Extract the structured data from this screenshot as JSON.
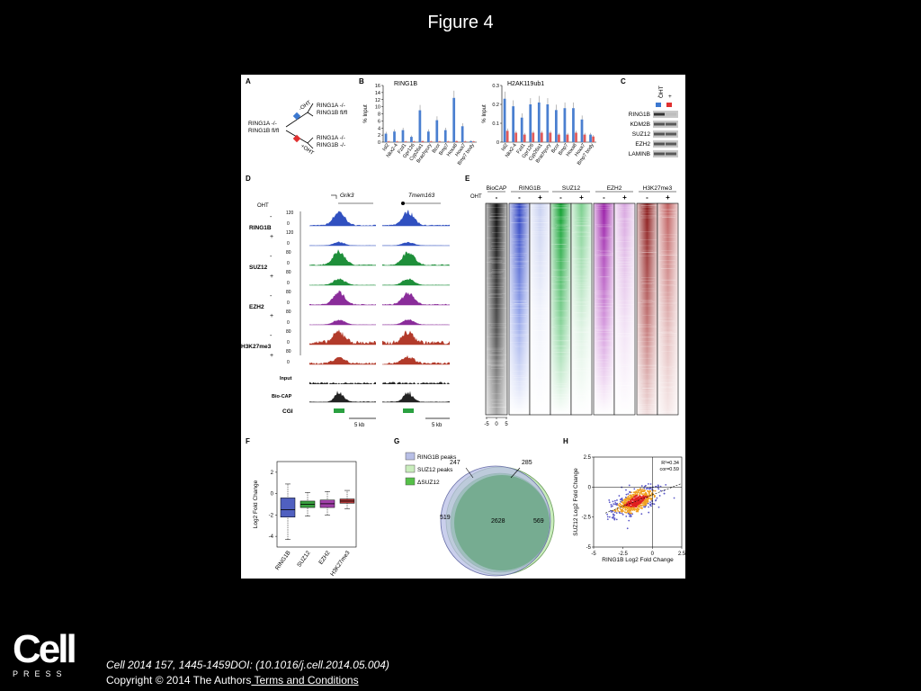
{
  "slide": {
    "title": "Figure 4"
  },
  "panels": {
    "A": {
      "letter": "A",
      "parent": "RING1A -/-\nRING1B fl/fl",
      "top": "RING1A -/-\nRING1B fl/fl",
      "bottom": "RING1A -/-\nRING1B -/-",
      "minus_label": "-OHT",
      "plus_label": "+OHT"
    },
    "B": {
      "letter": "B"
    },
    "C": {
      "letter": "C",
      "header": "OHT",
      "minus": "-",
      "plus": "+",
      "rows": [
        "RING1B",
        "KDM2B",
        "SUZ12",
        "EZH2",
        "LAMINB"
      ]
    },
    "D": {
      "letter": "D",
      "genes": [
        "Grik3",
        "Tmem163"
      ],
      "oht_label": "OHT",
      "groups": [
        "RING1B",
        "SUZ12",
        "EZH2",
        "H3K27me3"
      ],
      "scales": [
        "120",
        "120",
        "80",
        "80",
        "80",
        "80",
        "80",
        "80"
      ],
      "extra_tracks": [
        "Input",
        "Bio-CAP",
        "CGI"
      ],
      "scalebar": "5 kb"
    },
    "E": {
      "letter": "E",
      "oht_label": "OHT",
      "columns": [
        "BioCAP",
        "RING1B",
        "SUZ12",
        "EZH2",
        "H3K27me3"
      ],
      "axis_ticks": [
        "-5",
        "0",
        "5"
      ]
    },
    "F": {
      "letter": "F"
    },
    "G": {
      "letter": "G",
      "legend": [
        "RING1B peaks",
        "SUZ12 peaks",
        "ΔSUZ12"
      ],
      "counts": {
        "top_left": "247",
        "top_right": "285",
        "left": "519",
        "center": "2628",
        "right": "569"
      }
    },
    "H": {
      "letter": "H",
      "stats": [
        "R²=0.34",
        "cor=0.59"
      ]
    }
  },
  "chart_data": [
    {
      "type": "bar",
      "title": "RING1B",
      "ylabel": "% Input",
      "ylim": [
        0,
        16
      ],
      "yticks": [
        "0",
        "2",
        "4",
        "6",
        "8",
        "10",
        "12",
        "14",
        "16"
      ],
      "categories": [
        "Isl2",
        "Nkx2-4",
        "Fzd1",
        "Gpr126",
        "Cyp26a1",
        "Brachyury",
        "Bcor",
        "Bmp7",
        "Hoxa8",
        "Hoxa7",
        "Bmp7 body"
      ],
      "series": [
        {
          "values": [
            2.4,
            3.0,
            3.4,
            1.5,
            9.0,
            3.0,
            6.2,
            3.4,
            12.5,
            4.5,
            0.3
          ],
          "color": "#4a7fd0"
        },
        {
          "values": [
            0.2,
            0.2,
            0.2,
            0.2,
            0.3,
            0.2,
            0.2,
            0.2,
            0.3,
            0.2,
            0.2
          ],
          "color": "#e05a5a"
        }
      ]
    },
    {
      "type": "bar",
      "title": "H2AK119ub1",
      "ylabel": "% Input",
      "ylim": [
        0,
        0.3
      ],
      "yticks": [
        "0",
        "0.1",
        "0.2",
        "0.3"
      ],
      "categories": [
        "Isl2",
        "Nkx2-4",
        "Fzd1",
        "Gpr126",
        "Cyp26a1",
        "Brachyury",
        "Bcor",
        "Bmp7",
        "Hoxa8",
        "Hoxa7",
        "Bmp7 body"
      ],
      "series": [
        {
          "values": [
            0.23,
            0.19,
            0.13,
            0.2,
            0.21,
            0.2,
            0.17,
            0.18,
            0.18,
            0.12,
            0.04
          ],
          "color": "#4a7fd0"
        },
        {
          "values": [
            0.06,
            0.05,
            0.04,
            0.05,
            0.05,
            0.05,
            0.04,
            0.04,
            0.05,
            0.04,
            0.03
          ],
          "color": "#e05a5a"
        }
      ]
    },
    {
      "type": "box",
      "ylabel": "Log2 Fold Change",
      "ylim": [
        -5,
        3
      ],
      "yticks": [
        "2",
        "0",
        "-2",
        "-4"
      ],
      "categories": [
        "RING1B",
        "SUZ12",
        "EZH2",
        "H3K27me3"
      ],
      "boxes": [
        {
          "min": -4.3,
          "q1": -2.2,
          "median": -1.5,
          "q3": -0.4,
          "max": 0.9,
          "color": "#5060c0"
        },
        {
          "min": -2.1,
          "q1": -1.3,
          "median": -1.0,
          "q3": -0.7,
          "max": 0.1,
          "color": "#3aa040"
        },
        {
          "min": -2.0,
          "q1": -1.3,
          "median": -0.95,
          "q3": -0.6,
          "max": 0.2,
          "color": "#a040a8"
        },
        {
          "min": -1.4,
          "q1": -0.9,
          "median": -0.7,
          "q3": -0.5,
          "max": 0.3,
          "color": "#b03838"
        }
      ]
    },
    {
      "type": "scatter",
      "xlabel": "RING1B Log2 Fold Change",
      "ylabel": "SUZ12 Log2 Fold Change",
      "xlim": [
        -5,
        2.5
      ],
      "ylim": [
        -5,
        2.5
      ],
      "xticks": [
        "-5",
        "-2.5",
        "0",
        "2.5"
      ],
      "yticks": [
        "2.5",
        "0",
        "-2.5",
        "-5"
      ],
      "fit": {
        "slope": 0.38,
        "intercept": -0.65
      }
    }
  ],
  "footer": {
    "citation": "Cell 2014 157, 1445-1459DOI: (10.1016/j.cell.2014.05.004)",
    "copyright": "Copyright © 2014 The Authors",
    "terms": " Terms and Conditions",
    "logo_word": "Cell",
    "logo_press": "PRESS"
  }
}
